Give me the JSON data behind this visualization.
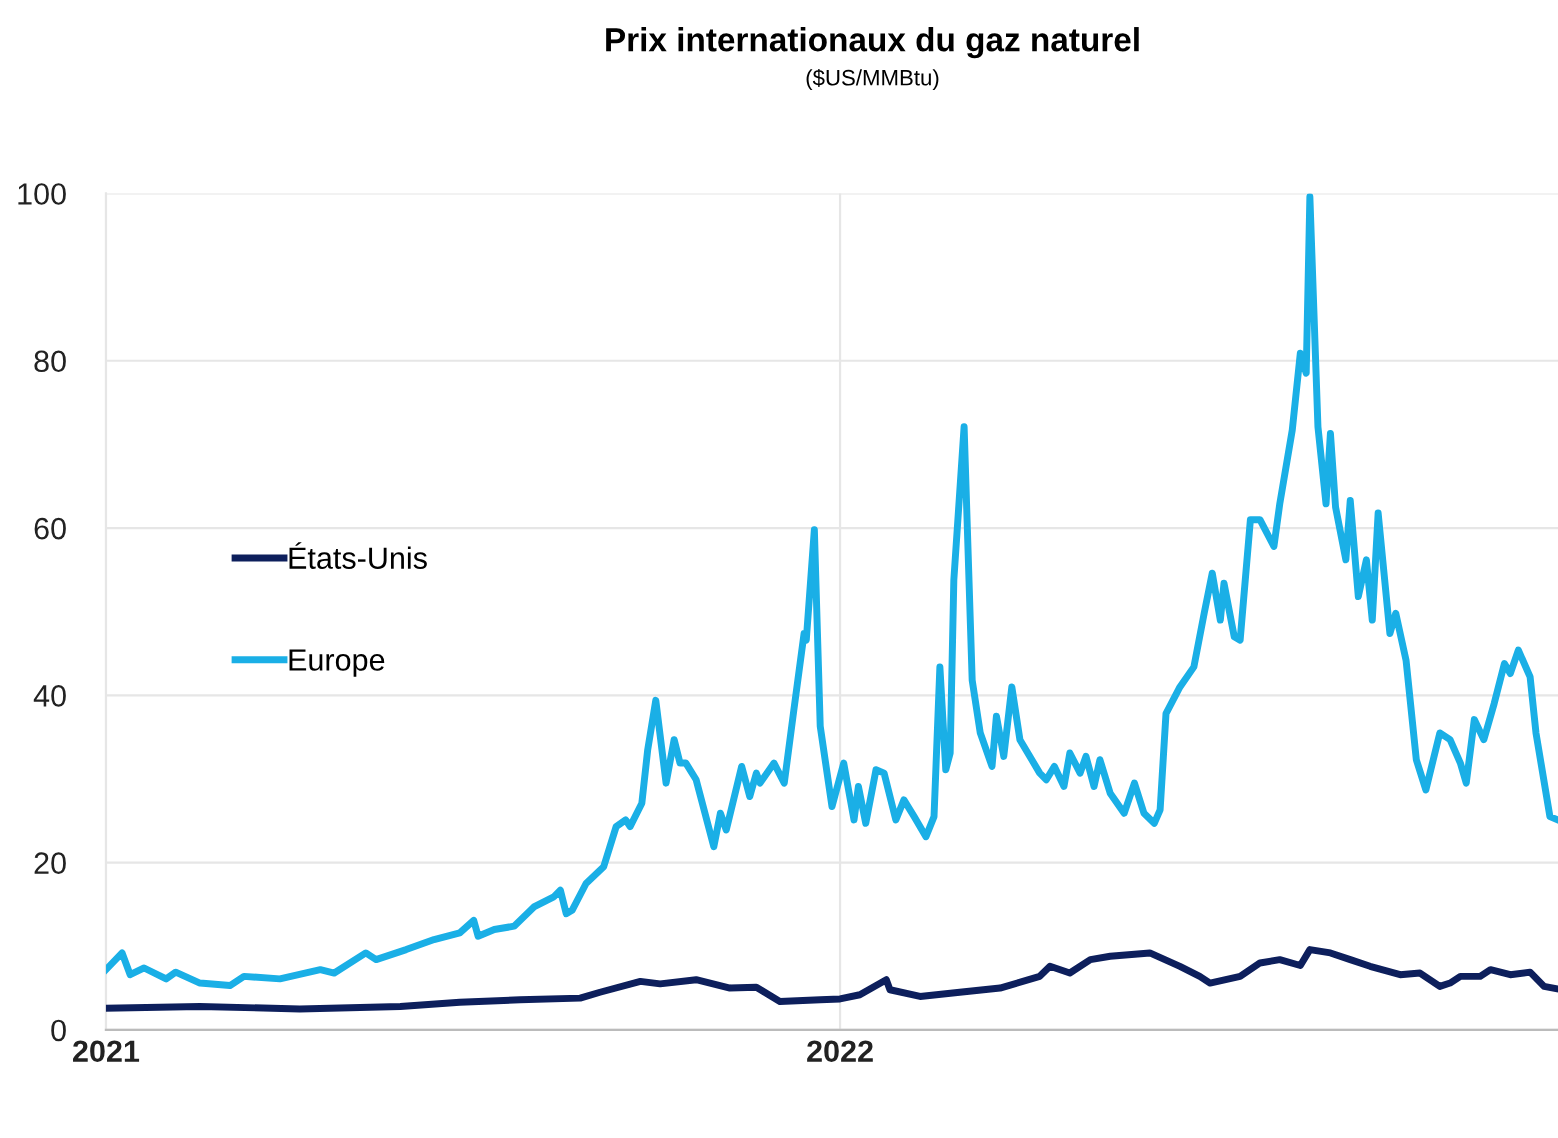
{
  "chart_data": {
    "type": "line",
    "title": "Prix internationaux du gaz naturel",
    "subtitle": "($US/MMBtu)",
    "xlim": [
      2021,
      2022.978
    ],
    "xticks": [
      2021,
      2022
    ],
    "ylim": [
      0,
      100
    ],
    "yticks": [
      0,
      20,
      40,
      60,
      80,
      100
    ],
    "grid": true,
    "legend": "center left",
    "marker": "none",
    "line_style": "solid",
    "series": [
      {
        "name": "États-Unis",
        "color": "#0d1f5c",
        "x": [
          2021.0,
          2021.128,
          2021.264,
          2021.401,
          2021.482,
          2021.564,
          2021.646,
          2021.673,
          2021.728,
          2021.755,
          2021.804,
          2021.85,
          2021.886,
          2021.918,
          2021.973,
          2022.0,
          2022.027,
          2022.063,
          2022.068,
          2022.109,
          2022.163,
          2022.218,
          2022.272,
          2022.286,
          2022.313,
          2022.341,
          2022.368,
          2022.422,
          2022.463,
          2022.49,
          2022.504,
          2022.545,
          2022.572,
          2022.599,
          2022.627,
          2022.64,
          2022.668,
          2022.695,
          2022.722,
          2022.763,
          2022.79,
          2022.817,
          2022.831,
          2022.845,
          2022.872,
          2022.886,
          2022.913,
          2022.94,
          2022.959,
          2022.978
        ],
        "values": [
          2.6,
          2.8,
          2.5,
          2.8,
          3.3,
          3.6,
          3.8,
          4.5,
          5.8,
          5.5,
          6.0,
          5.0,
          5.1,
          3.4,
          3.6,
          3.7,
          4.2,
          6.0,
          4.8,
          4.0,
          4.5,
          5.0,
          6.4,
          7.6,
          6.8,
          8.4,
          8.8,
          9.2,
          7.6,
          6.4,
          5.6,
          6.4,
          8.0,
          8.4,
          7.7,
          9.6,
          9.2,
          8.4,
          7.6,
          6.6,
          6.8,
          5.2,
          5.6,
          6.4,
          6.4,
          7.2,
          6.6,
          6.9,
          5.2,
          4.9
        ]
      },
      {
        "name": "Europe",
        "color": "#1aafe6",
        "x": [
          2021.0,
          2021.022,
          2021.033,
          2021.052,
          2021.082,
          2021.095,
          2021.128,
          2021.169,
          2021.188,
          2021.237,
          2021.292,
          2021.311,
          2021.354,
          2021.368,
          2021.409,
          2021.447,
          2021.482,
          2021.501,
          2021.507,
          2021.529,
          2021.556,
          2021.583,
          2021.61,
          2021.619,
          2021.627,
          2021.635,
          2021.654,
          2021.678,
          2021.695,
          2021.708,
          2021.714,
          2021.73,
          2021.738,
          2021.749,
          2021.763,
          2021.774,
          2021.782,
          2021.79,
          2021.804,
          2021.828,
          2021.837,
          2021.845,
          2021.866,
          2021.877,
          2021.886,
          2021.891,
          2021.91,
          2021.924,
          2021.937,
          2021.951,
          2021.954,
          2021.965,
          2021.973,
          2021.989,
          2022.005,
          2022.019,
          2022.025,
          2022.035,
          2022.049,
          2022.06,
          2022.076,
          2022.087,
          2022.101,
          2022.117,
          2022.128,
          2022.136,
          2022.144,
          2022.15,
          2022.155,
          2022.169,
          2022.18,
          2022.191,
          2022.207,
          2022.213,
          2022.223,
          2022.234,
          2022.245,
          2022.272,
          2022.281,
          2022.292,
          2022.305,
          2022.313,
          2022.327,
          2022.335,
          2022.346,
          2022.354,
          2022.368,
          2022.387,
          2022.401,
          2022.414,
          2022.428,
          2022.436,
          2022.444,
          2022.463,
          2022.482,
          2022.496,
          2022.507,
          2022.518,
          2022.523,
          2022.537,
          2022.545,
          2022.559,
          2022.572,
          2022.591,
          2022.599,
          2022.616,
          2022.627,
          2022.635,
          2022.64,
          2022.651,
          2022.662,
          2022.668,
          2022.675,
          2022.689,
          2022.695,
          2022.706,
          2022.717,
          2022.725,
          2022.733,
          2022.749,
          2022.757,
          2022.771,
          2022.785,
          2022.798,
          2022.817,
          2022.831,
          2022.845,
          2022.853,
          2022.864,
          2022.877,
          2022.891,
          2022.905,
          2022.913,
          2022.924,
          2022.94,
          2022.948,
          2022.967,
          2022.978
        ],
        "values": [
          7.2,
          9.2,
          6.6,
          7.4,
          6.1,
          6.9,
          5.6,
          5.3,
          6.4,
          6.1,
          7.2,
          6.8,
          9.2,
          8.4,
          9.6,
          10.8,
          11.6,
          13.1,
          11.2,
          12.0,
          12.4,
          14.7,
          15.9,
          16.7,
          13.9,
          14.3,
          17.5,
          19.5,
          24.3,
          25.1,
          24.3,
          27.1,
          33.5,
          39.4,
          29.5,
          34.7,
          31.9,
          31.9,
          29.9,
          21.9,
          25.9,
          23.9,
          31.5,
          27.9,
          30.7,
          29.5,
          31.9,
          29.5,
          38.2,
          47.4,
          46.6,
          59.8,
          36.3,
          26.7,
          31.9,
          25.1,
          29.1,
          24.7,
          31.1,
          30.7,
          25.1,
          27.5,
          25.5,
          23.1,
          25.5,
          43.4,
          31.1,
          33.1,
          53.8,
          72.1,
          41.8,
          35.5,
          31.5,
          37.5,
          32.7,
          41.0,
          34.7,
          30.7,
          29.9,
          31.5,
          29.1,
          33.1,
          30.7,
          32.7,
          29.1,
          32.3,
          28.3,
          25.9,
          29.5,
          25.9,
          24.7,
          26.3,
          37.8,
          41.0,
          43.4,
          49.8,
          54.6,
          49.0,
          53.4,
          47.0,
          46.6,
          61.0,
          61.0,
          57.8,
          62.9,
          71.7,
          80.9,
          78.5,
          99.6,
          72.1,
          62.9,
          71.3,
          62.5,
          56.2,
          63.3,
          51.8,
          56.2,
          49.0,
          61.8,
          47.4,
          49.8,
          44.2,
          32.3,
          28.7,
          35.5,
          34.7,
          31.9,
          29.5,
          37.1,
          34.7,
          39.0,
          43.8,
          42.6,
          45.4,
          42.2,
          35.5,
          25.5,
          25.1
        ]
      }
    ]
  }
}
